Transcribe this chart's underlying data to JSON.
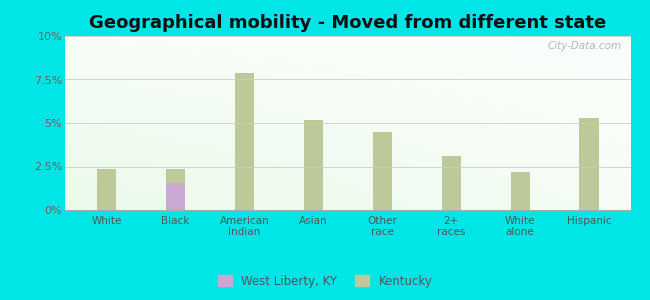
{
  "title": "Geographical mobility - Moved from different state",
  "categories": [
    "White",
    "Black",
    "American\nIndian",
    "Asian",
    "Other\nrace",
    "2+\nraces",
    "White\nalone",
    "Hispanic"
  ],
  "west_liberty_values": [
    0.0,
    1.55,
    0.0,
    0.0,
    0.0,
    0.0,
    0.0,
    0.0
  ],
  "kentucky_values": [
    2.35,
    2.35,
    7.85,
    5.15,
    4.5,
    3.1,
    2.2,
    5.3
  ],
  "bar_width": 0.28,
  "west_liberty_color": "#c9a8d4",
  "kentucky_color": "#bec99a",
  "ylim": [
    0,
    10
  ],
  "yticks": [
    0,
    2.5,
    5.0,
    7.5,
    10.0
  ],
  "ytick_labels": [
    "0%",
    "2.5%",
    "5%",
    "7.5%",
    "10%"
  ],
  "title_fontsize": 13,
  "legend_labels": [
    "West Liberty, KY",
    "Kentucky"
  ],
  "watermark": "City-Data.com",
  "figure_bg": "#00e5e5",
  "grid_color": "#cccccc"
}
